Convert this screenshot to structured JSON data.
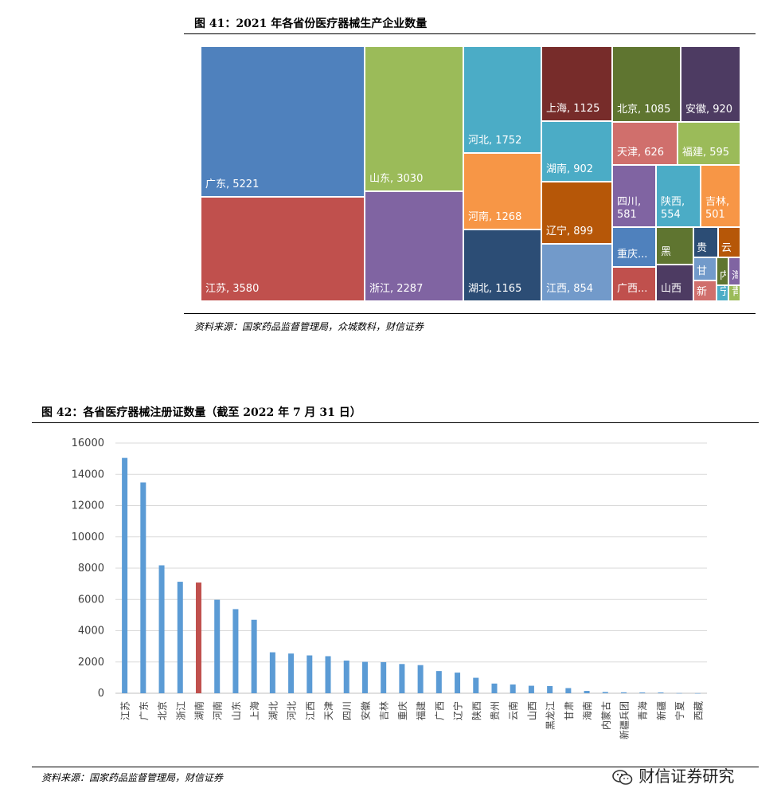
{
  "figure1": {
    "title": "图 41：2021 年各省份医疗器械生产企业数量",
    "source": "资料来源：国家药品监督管理局，众城数科，财信证券"
  },
  "figure2": {
    "title": "图 42：各省医疗器械注册证数量（截至 2022 年 7 月 31 日）",
    "source": "资料来源：国家药品监督管理局，财信证券"
  },
  "watermark": {
    "text": "财信证券研究",
    "icon": "wechat-icon"
  },
  "colors": {
    "bar": "#5B9BD5",
    "bar_highlight": "#C0504D",
    "treemap": [
      "#4F81BD",
      "#9BBB59",
      "#4BACC6",
      "#772C2A",
      "#5F7530",
      "#4D3B62",
      "#C0504D",
      "#8064A2",
      "#F79646",
      "#2C4D75",
      "#B65708",
      "#729ACA",
      "#D06F6C"
    ]
  },
  "chart_data": [
    {
      "type": "treemap",
      "labels_shown": [
        "广东, 5221",
        "江苏, 3580",
        "山东, 3030",
        "浙江, 2287",
        "河北, 1752",
        "河南, 1268",
        "湖北, 1165",
        "上海, 1125",
        "湖南, 902",
        "辽宁, 899",
        "江西, 854",
        "北京, 1085",
        "安徽, 920",
        "天津, 626",
        "福建, 595",
        "四川, 581",
        "陕西, 554",
        "吉林, 501",
        "重庆...",
        "广西...",
        "黑",
        "山西",
        "贵",
        "云",
        "甘",
        "新",
        "内",
        "海",
        "宁",
        "青"
      ],
      "items": [
        {
          "name": "广东",
          "value": 5221
        },
        {
          "name": "江苏",
          "value": 3580
        },
        {
          "name": "山东",
          "value": 3030
        },
        {
          "name": "浙江",
          "value": 2287
        },
        {
          "name": "河北",
          "value": 1752
        },
        {
          "name": "河南",
          "value": 1268
        },
        {
          "name": "湖北",
          "value": 1165
        },
        {
          "name": "上海",
          "value": 1125
        },
        {
          "name": "北京",
          "value": 1085
        },
        {
          "name": "安徽",
          "value": 920
        },
        {
          "name": "湖南",
          "value": 902
        },
        {
          "name": "辽宁",
          "value": 899
        },
        {
          "name": "江西",
          "value": 854
        },
        {
          "name": "天津",
          "value": 626
        },
        {
          "name": "福建",
          "value": 595
        },
        {
          "name": "四川",
          "value": 581
        },
        {
          "name": "陕西",
          "value": 554
        },
        {
          "name": "吉林",
          "value": 501
        }
      ]
    },
    {
      "type": "bar",
      "categories": [
        "江苏",
        "广东",
        "北京",
        "浙江",
        "湖南",
        "河南",
        "山东",
        "上海",
        "湖北",
        "河北",
        "江西",
        "天津",
        "四川",
        "安徽",
        "吉林",
        "重庆",
        "福建",
        "广西",
        "辽宁",
        "陕西",
        "贵州",
        "云南",
        "山西",
        "黑龙江",
        "甘肃",
        "海南",
        "内蒙古",
        "新疆兵团",
        "青海",
        "新疆",
        "宁夏",
        "西藏"
      ],
      "values": [
        15050,
        13480,
        8180,
        7130,
        7080,
        5980,
        5380,
        4700,
        2620,
        2540,
        2420,
        2370,
        2090,
        2010,
        1990,
        1870,
        1800,
        1420,
        1320,
        990,
        620,
        560,
        480,
        460,
        330,
        150,
        80,
        60,
        50,
        50,
        10,
        5
      ],
      "highlight_category": "湖南",
      "ylim": [
        0,
        16000
      ],
      "yticks": [
        "0",
        "2000",
        "4000",
        "6000",
        "8000",
        "10000",
        "12000",
        "14000",
        "16000"
      ],
      "grid": true,
      "legend": "none"
    }
  ]
}
